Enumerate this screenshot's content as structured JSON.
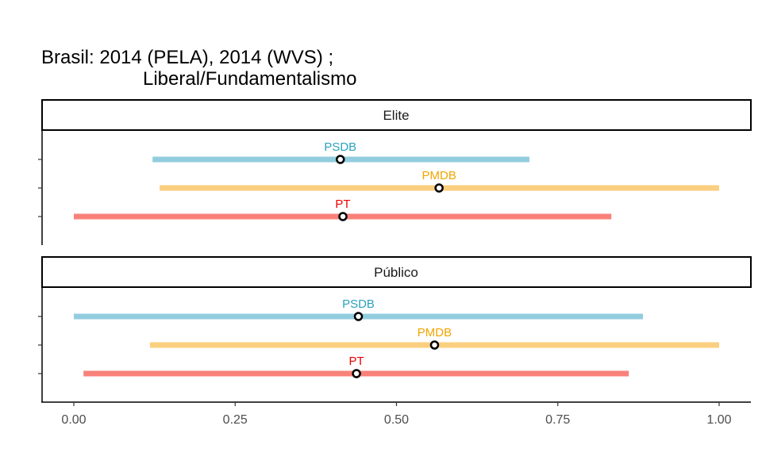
{
  "chart_data": {
    "type": "dot-range",
    "title": [
      "Brasil: 2014 (PELA), 2014 (WVS) ;",
      "Liberal/Fundamentalismo"
    ],
    "xlim": [
      0,
      1
    ],
    "x_ticks": [
      0,
      0.25,
      0.5,
      0.75,
      1
    ],
    "x_tick_labels": [
      "0.00",
      "0.25",
      "0.50",
      "0.75",
      "1.00"
    ],
    "colors": {
      "PSDB": {
        "bar": "#92CDDF",
        "text": "#2AA1BF"
      },
      "PMDB": {
        "bar": "#FACF7F",
        "text": "#F1A500"
      },
      "PT": {
        "bar": "#F88179",
        "text": "#EE0000"
      }
    },
    "panels": [
      {
        "strip": "Elite",
        "series": [
          {
            "name": "PSDB",
            "low": 0.122,
            "high": 0.706,
            "mean": 0.413
          },
          {
            "name": "PMDB",
            "low": 0.133,
            "high": 1.0,
            "mean": 0.566
          },
          {
            "name": "PT",
            "low": 0.0,
            "high": 0.833,
            "mean": 0.417
          }
        ]
      },
      {
        "strip": "Público",
        "series": [
          {
            "name": "PSDB",
            "low": 0.0,
            "high": 0.882,
            "mean": 0.441
          },
          {
            "name": "PMDB",
            "low": 0.118,
            "high": 1.0,
            "mean": 0.559
          },
          {
            "name": "PT",
            "low": 0.015,
            "high": 0.86,
            "mean": 0.438
          }
        ]
      }
    ]
  }
}
